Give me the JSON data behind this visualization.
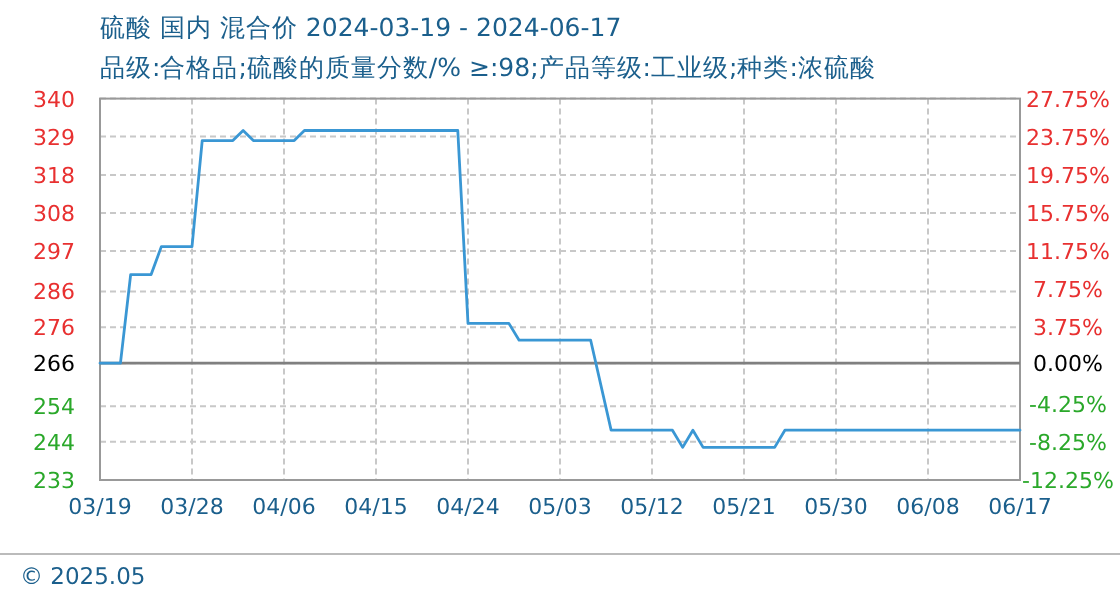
{
  "chart_data": {
    "type": "line",
    "title": "硫酸 国内 混合价 2024-03-19 - 2024-06-17",
    "subtitle": "品级:合格品;硫酸的质量分数/% ≥:98;产品等级:工业级;种类:浓硫酸",
    "x": [
      "2024-03-19",
      "2024-03-21",
      "2024-03-22",
      "2024-03-24",
      "2024-03-25",
      "2024-03-28",
      "2024-03-29",
      "2024-04-01",
      "2024-04-02",
      "2024-04-03",
      "2024-04-07",
      "2024-04-08",
      "2024-04-23",
      "2024-04-24",
      "2024-04-28",
      "2024-04-29",
      "2024-05-06",
      "2024-05-08",
      "2024-05-14",
      "2024-05-15",
      "2024-05-16",
      "2024-05-17",
      "2024-05-24",
      "2024-05-25",
      "2024-06-17"
    ],
    "series": [
      {
        "color": "#3a97d4",
        "values": [
          266,
          266,
          290.7,
          290.7,
          298.5,
          298.5,
          328.1,
          328.1,
          330.9,
          328.1,
          328.1,
          330.9,
          330.9,
          277.1,
          277.1,
          272.4,
          272.4,
          247.3,
          247.3,
          242.5,
          247.3,
          242.5,
          242.5,
          247.3,
          247.3
        ]
      }
    ],
    "xlim": [
      "2024-03-19",
      "2024-06-17"
    ],
    "xticks": [
      {
        "value": "2024-03-19",
        "label": "03/19"
      },
      {
        "value": "2024-03-28",
        "label": "03/28"
      },
      {
        "value": "2024-04-06",
        "label": "04/06"
      },
      {
        "value": "2024-04-15",
        "label": "04/15"
      },
      {
        "value": "2024-04-24",
        "label": "04/24"
      },
      {
        "value": "2024-05-03",
        "label": "05/03"
      },
      {
        "value": "2024-05-12",
        "label": "05/12"
      },
      {
        "value": "2024-05-21",
        "label": "05/21"
      },
      {
        "value": "2024-05-30",
        "label": "05/30"
      },
      {
        "value": "2024-06-08",
        "label": "06/08"
      },
      {
        "value": "2024-06-17",
        "label": "06/17"
      }
    ],
    "ylim": [
      233.4,
      339.8
    ],
    "yticks": [
      {
        "value": 339.8,
        "label": "340"
      },
      {
        "value": 329.2,
        "label": "329"
      },
      {
        "value": 318.5,
        "label": "318"
      },
      {
        "value": 307.9,
        "label": "308"
      },
      {
        "value": 297.3,
        "label": "297"
      },
      {
        "value": 286,
        "label": "286"
      },
      {
        "value": 276,
        "label": "276"
      },
      {
        "value": 266,
        "label": "266"
      },
      {
        "value": 254,
        "label": "254"
      },
      {
        "value": 244.1,
        "label": "244"
      },
      {
        "value": 233.4,
        "label": "233"
      }
    ],
    "y2lim": [
      -12.25,
      27.75
    ],
    "y2ticks": [
      {
        "value": 27.75,
        "label": "27.75%"
      },
      {
        "value": 23.75,
        "label": "23.75%"
      },
      {
        "value": 19.75,
        "label": "19.75%"
      },
      {
        "value": 15.75,
        "label": "15.75%"
      },
      {
        "value": 11.75,
        "label": "11.75%"
      },
      {
        "value": 7.75,
        "label": "7.75%"
      },
      {
        "value": 3.75,
        "label": "3.75%"
      },
      {
        "value": 0,
        "label": "0.00%"
      },
      {
        "value": -4.25,
        "label": "-4.25%"
      },
      {
        "value": -8.25,
        "label": "-8.25%"
      },
      {
        "value": -12.25,
        "label": "-12.25%"
      }
    ],
    "grid": true,
    "ref_lines": [
      {
        "axis": "y",
        "value": 266,
        "color": "#808080"
      }
    ],
    "annotations": [
      "© 2025.05"
    ]
  }
}
